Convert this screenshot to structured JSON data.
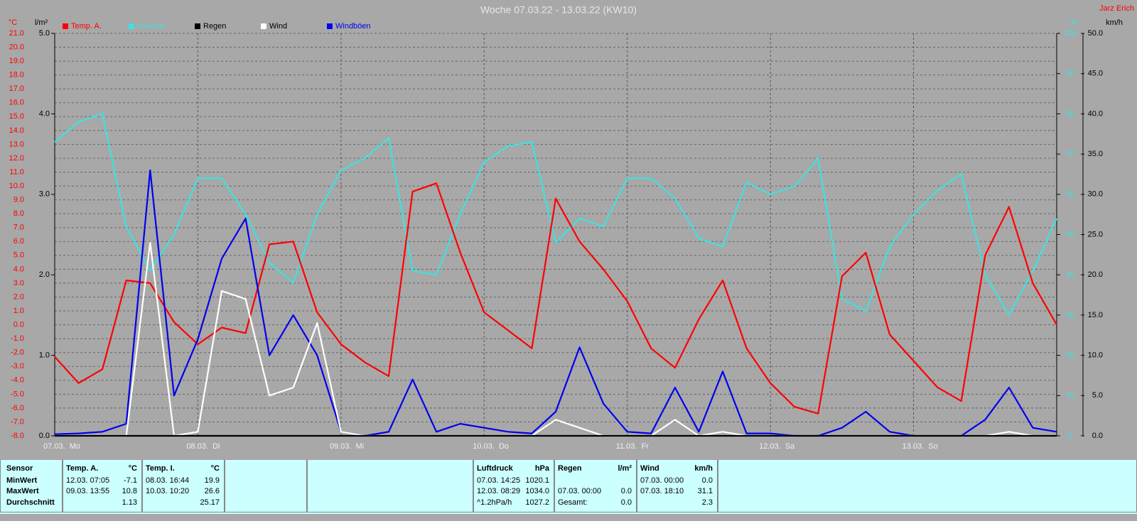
{
  "chart_data": {
    "type": "line",
    "title": "Woche 07.03.22 - 13.03.22 (KW10)",
    "author": "Jarz Erich",
    "y_unit": "°C",
    "y2_unit": "l/m²",
    "y3_unit": "%",
    "y4_unit": "km/h",
    "x": [
      0,
      4,
      8,
      12,
      16,
      20,
      24,
      28,
      32,
      36,
      40,
      44,
      48,
      52,
      56,
      60,
      64,
      68,
      72,
      76,
      80,
      84,
      88,
      92,
      96,
      100,
      104,
      108,
      112,
      116,
      120,
      124,
      128,
      132,
      136,
      140,
      144,
      148,
      152,
      156,
      160,
      164,
      168
    ],
    "xlim": [
      0,
      168
    ],
    "xticks": [
      {
        "value": 0,
        "label": "07.03.  Mo"
      },
      {
        "value": 24,
        "label": "08.03.  Di"
      },
      {
        "value": 48,
        "label": "09.03.  Mi"
      },
      {
        "value": 72,
        "label": "10.03.  Do"
      },
      {
        "value": 96,
        "label": "11.03.  Fr"
      },
      {
        "value": 120,
        "label": "12.03.  Sa"
      },
      {
        "value": 144,
        "label": "13.03.  So"
      }
    ],
    "ylim": [
      -8,
      21
    ],
    "yticks": [
      {
        "value": 21,
        "label": "21.0"
      },
      {
        "value": 20,
        "label": "20.0"
      },
      {
        "value": 19,
        "label": "19.0"
      },
      {
        "value": 18,
        "label": "18.0"
      },
      {
        "value": 17,
        "label": "17.0"
      },
      {
        "value": 16,
        "label": "16.0"
      },
      {
        "value": 15,
        "label": "15.0"
      },
      {
        "value": 14,
        "label": "14.0"
      },
      {
        "value": 13,
        "label": "13.0"
      },
      {
        "value": 12,
        "label": "12.0"
      },
      {
        "value": 11,
        "label": "11.0"
      },
      {
        "value": 10,
        "label": "10.0"
      },
      {
        "value": 9,
        "label": "9.0"
      },
      {
        "value": 8,
        "label": "8.0"
      },
      {
        "value": 7,
        "label": "7.0"
      },
      {
        "value": 6,
        "label": "6.0"
      },
      {
        "value": 5,
        "label": "5.0"
      },
      {
        "value": 4,
        "label": "4.0"
      },
      {
        "value": 3,
        "label": "3.0"
      },
      {
        "value": 2,
        "label": "2.0"
      },
      {
        "value": 1,
        "label": "1.0"
      },
      {
        "value": 0,
        "label": "0.0"
      },
      {
        "value": -1,
        "label": "-1.0"
      },
      {
        "value": -2,
        "label": "-2.0"
      },
      {
        "value": -3,
        "label": "-3.0"
      },
      {
        "value": -4,
        "label": "-4.0"
      },
      {
        "value": -5,
        "label": "-5.0"
      },
      {
        "value": -6,
        "label": "-6.0"
      },
      {
        "value": -7,
        "label": "-7.0"
      },
      {
        "value": -8,
        "label": "-8.0"
      }
    ],
    "y2lim": [
      0,
      5
    ],
    "y2ticks": [
      {
        "value": 5,
        "label": "5.0"
      },
      {
        "value": 4,
        "label": "4.0"
      },
      {
        "value": 3,
        "label": "3.0"
      },
      {
        "value": 2,
        "label": "2.0"
      },
      {
        "value": 1,
        "label": "1.0"
      },
      {
        "value": 0,
        "label": "0.0"
      }
    ],
    "y3lim": [
      0,
      100
    ],
    "y3ticks": [
      100,
      90,
      80,
      70,
      60,
      50,
      40,
      30,
      20,
      10,
      0
    ],
    "y4lim": [
      0,
      50
    ],
    "y4ticks": [
      {
        "value": 50,
        "label": "50.0"
      },
      {
        "value": 45,
        "label": "45.0"
      },
      {
        "value": 40,
        "label": "40.0"
      },
      {
        "value": 35,
        "label": "35.0"
      },
      {
        "value": 30,
        "label": "30.0"
      },
      {
        "value": 25,
        "label": "25.0"
      },
      {
        "value": 20,
        "label": "20.0"
      },
      {
        "value": 15,
        "label": "15.0"
      },
      {
        "value": 10,
        "label": "10.0"
      },
      {
        "value": 5,
        "label": "5.0"
      },
      {
        "value": 0,
        "label": "0.0"
      }
    ],
    "grid": true,
    "series": [
      {
        "name": "Temp. A.",
        "color": "#ff0000",
        "axis": "y",
        "values": [
          -2.3,
          -4.2,
          -3.2,
          3.2,
          3.0,
          0.2,
          -1.4,
          -0.2,
          -0.6,
          5.8,
          6.0,
          0.9,
          -1.4,
          -2.7,
          -3.7,
          9.6,
          10.2,
          5.2,
          0.9,
          -0.4,
          -1.7,
          9.1,
          6.0,
          4.0,
          1.7,
          -1.7,
          -3.1,
          0.4,
          3.2,
          -1.7,
          -4.2,
          -5.9,
          -6.4,
          3.5,
          5.2,
          -0.7,
          -2.6,
          -4.5,
          -5.5,
          5.0,
          8.5,
          3.0,
          0.0
        ]
      },
      {
        "name": "Feuchte",
        "color": "#40e0e0",
        "axis": "y3",
        "values": [
          73,
          78,
          80,
          52,
          41,
          50,
          64,
          64,
          55,
          43,
          38,
          55,
          66,
          69,
          74,
          41,
          40,
          55,
          68,
          72,
          73,
          48,
          54,
          52,
          64,
          64,
          59,
          49,
          47,
          63,
          60,
          62,
          69,
          34,
          31,
          47,
          55,
          61,
          65,
          40,
          30,
          41,
          54
        ]
      },
      {
        "name": "Regen",
        "color": "#000000",
        "axis": "y2",
        "values": [
          0,
          0,
          0,
          0,
          0,
          0,
          0,
          0,
          0,
          0,
          0,
          0,
          0,
          0,
          0,
          0,
          0,
          0,
          0,
          0,
          0,
          0,
          0,
          0,
          0,
          0,
          0,
          0,
          0,
          0,
          0,
          0,
          0,
          0,
          0,
          0,
          0,
          0,
          0,
          0,
          0,
          0,
          0
        ]
      },
      {
        "name": "Wind",
        "color": "#ffffff",
        "axis": "y4",
        "values": [
          0,
          0,
          0,
          0,
          24,
          0,
          0.5,
          18,
          17,
          5,
          6,
          14,
          0.5,
          0,
          0,
          0,
          0,
          0,
          0,
          0,
          0,
          2,
          1,
          0,
          0,
          0,
          2,
          0,
          0.5,
          0,
          0,
          0,
          0,
          0,
          0,
          0,
          0,
          0,
          0,
          0,
          0.5,
          0,
          0
        ]
      },
      {
        "name": "Windböen",
        "color": "#0000ee",
        "axis": "y4",
        "values": [
          0.2,
          0.3,
          0.5,
          1.5,
          33,
          5,
          12,
          22,
          27,
          10,
          15,
          10,
          0.5,
          0,
          0.5,
          7,
          0.5,
          1.5,
          1,
          0.5,
          0.3,
          3,
          11,
          4,
          0.5,
          0.3,
          6,
          0.5,
          8,
          0.3,
          0.3,
          0,
          0,
          1,
          3,
          0.5,
          0,
          0,
          0,
          2,
          6,
          1,
          0.5
        ]
      }
    ]
  },
  "stats": {
    "labels": [
      "Sensor",
      "MinWert",
      "MaxWert",
      "Durchschnitt"
    ],
    "blocks": [
      {
        "name": "Temp. A.",
        "unit": "°C",
        "min": [
          "12.03.  07:05",
          "-7.1"
        ],
        "max": [
          "09.03.  13:55",
          "10.8"
        ],
        "avg": [
          "1.13"
        ]
      },
      {
        "name": "Temp. I.",
        "unit": "°C",
        "min": [
          "08.03.  16:44",
          "19.9"
        ],
        "max": [
          "10.03.  10:20",
          "26.6"
        ],
        "avg": [
          "25.17"
        ]
      },
      {
        "name": "Luftdruck",
        "unit": "hPa",
        "min": [
          "07.03.  14:25",
          "1020.1"
        ],
        "max": [
          "12.03.  08:29",
          "1034.0"
        ],
        "avg": [
          "^1.2hPa/h",
          "1027.2"
        ]
      },
      {
        "name": "Regen",
        "unit": "l/m²",
        "max": [
          "07.03.  00:00",
          "0.0"
        ],
        "avg": [
          "Gesamt:",
          "0.0"
        ]
      },
      {
        "name": "Wind",
        "unit": "km/h",
        "min": [
          "07.03.  00:00",
          "0.0"
        ],
        "max": [
          "07.03.  18:10",
          "31.1"
        ],
        "avg": [
          "2.3"
        ]
      }
    ]
  }
}
